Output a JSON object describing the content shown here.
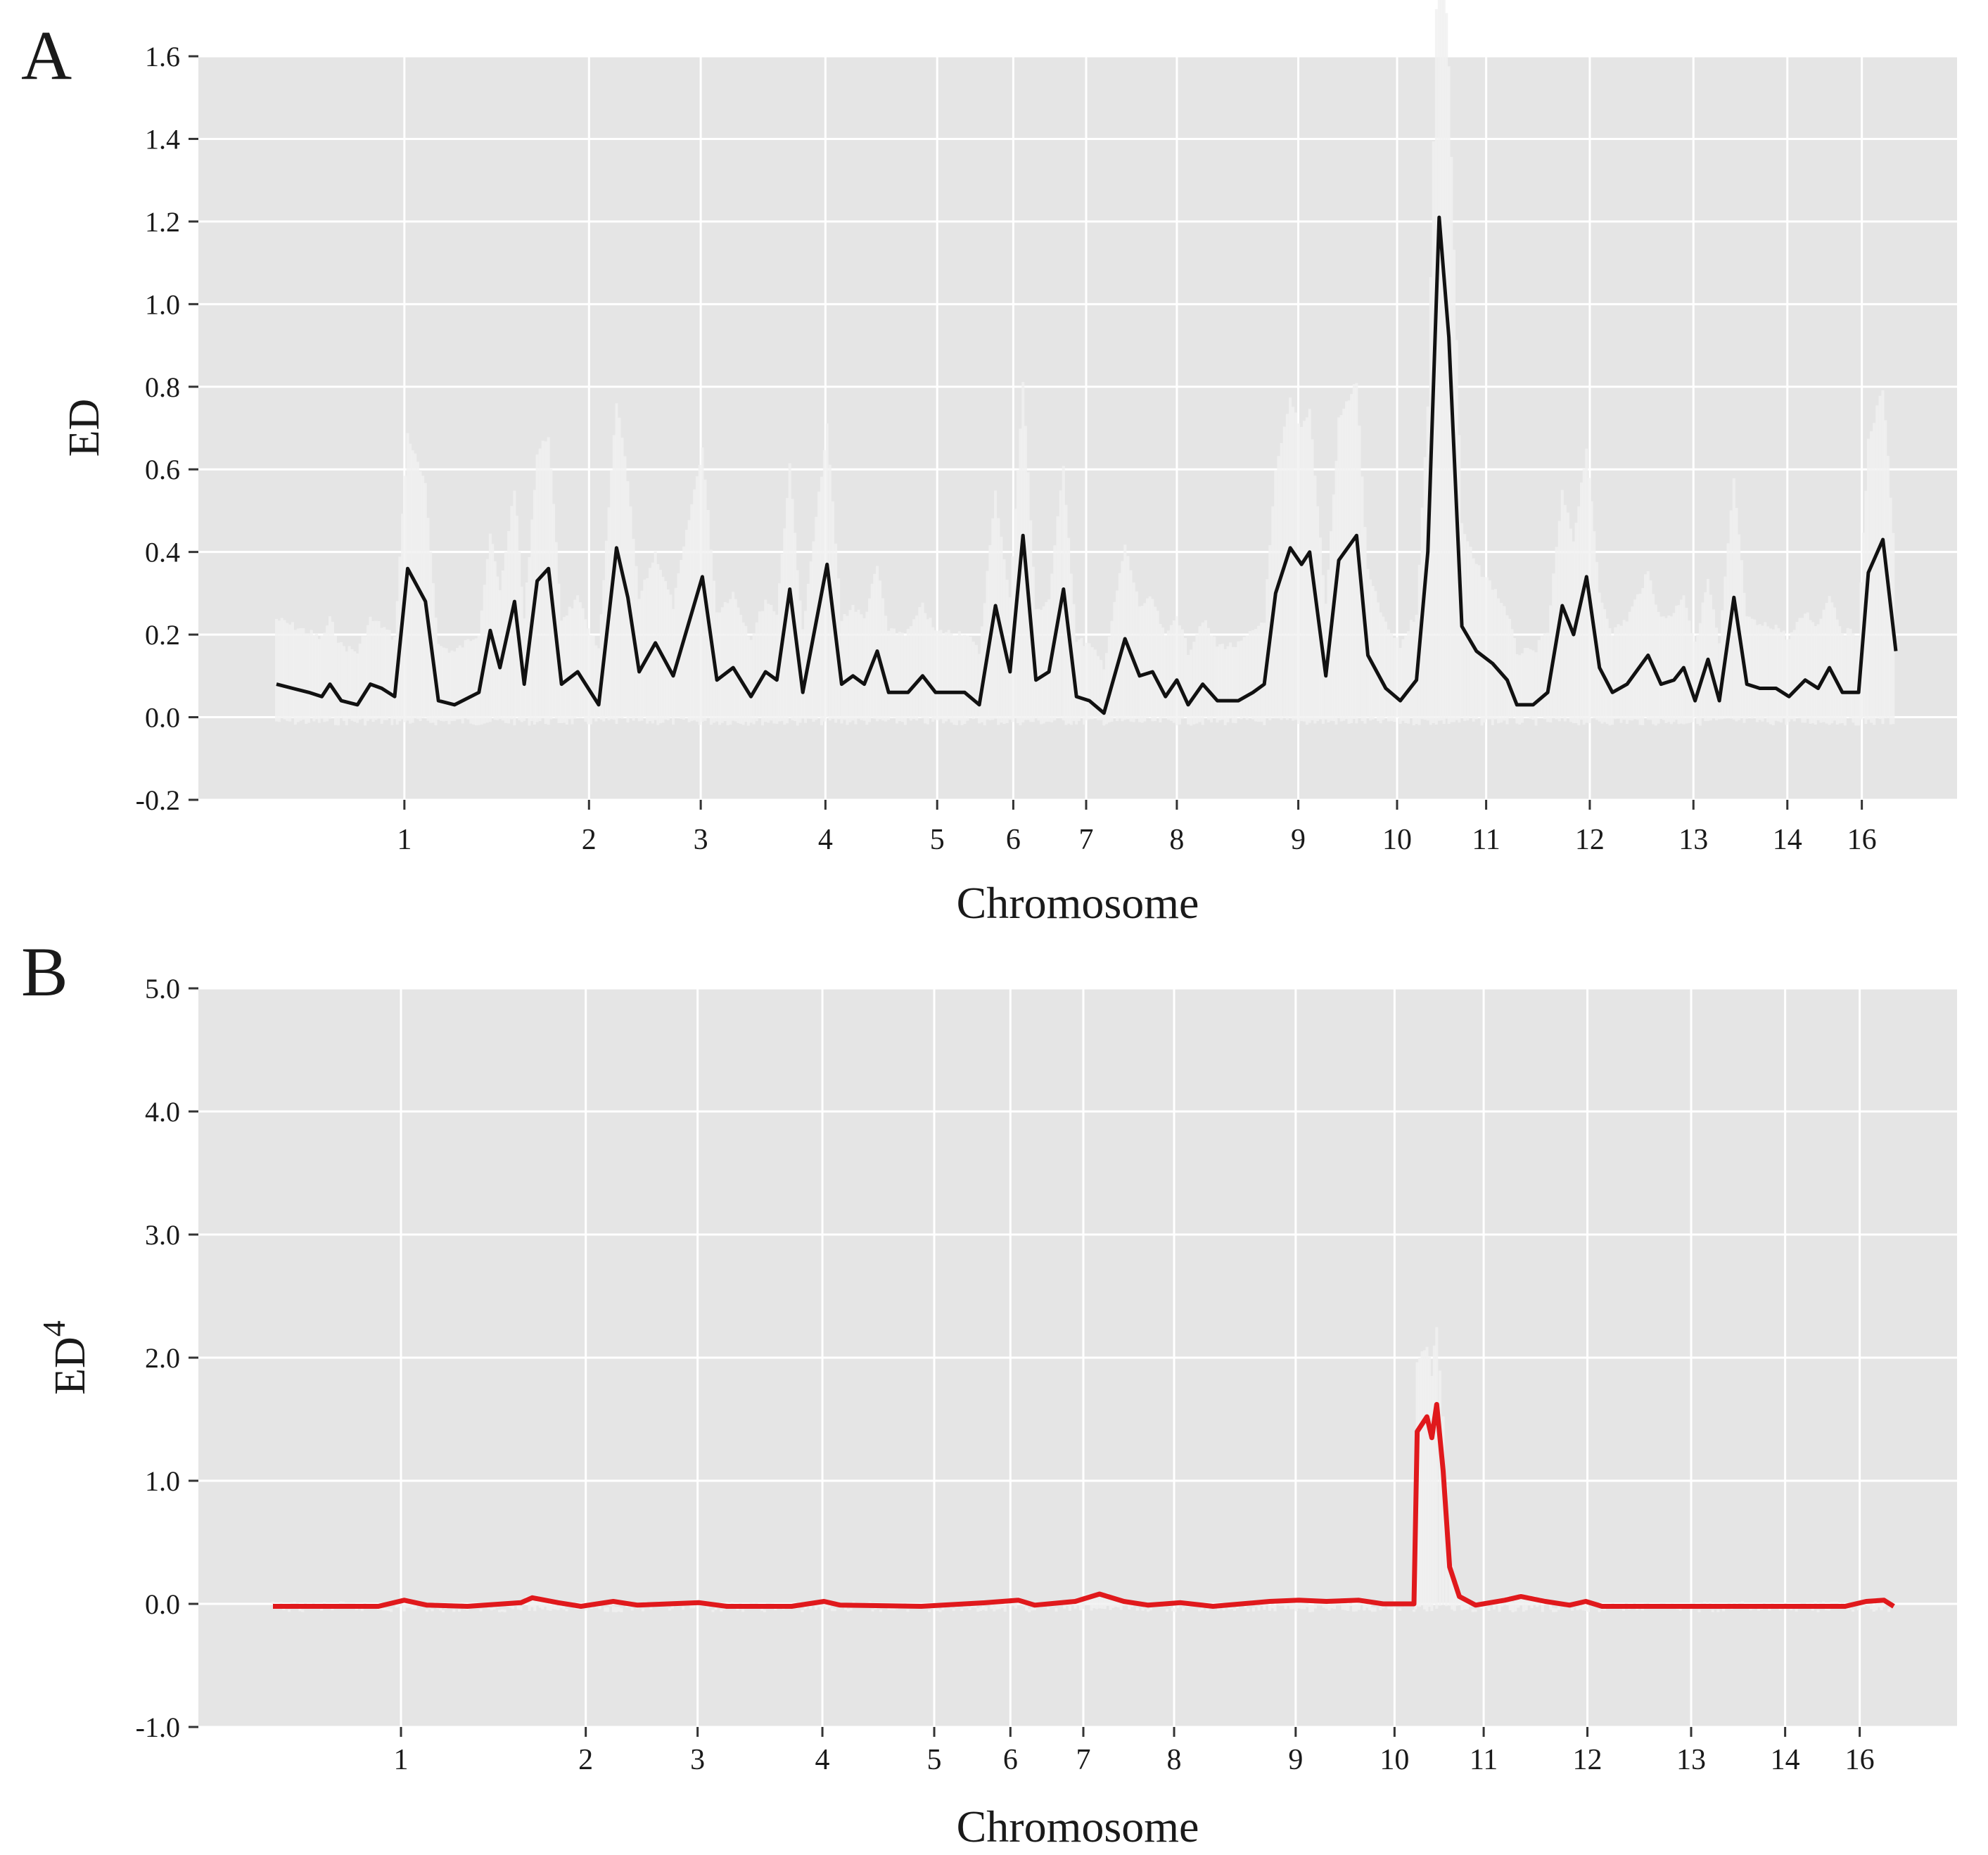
{
  "chart_data": [
    {
      "panel_label": "A",
      "type": "line",
      "xlabel": "Chromosome",
      "ylabel": "ED",
      "ylabel_sup": "",
      "ylim": [
        -0.2,
        1.6
      ],
      "yticks": [
        "-0.2",
        "0.0",
        "0.2",
        "0.4",
        "0.6",
        "0.8",
        "1.0",
        "1.2",
        "1.4",
        "1.6"
      ],
      "xlim": [
        0,
        100
      ],
      "chromosome_labels": [
        {
          "label": "1",
          "x": 7.9
        },
        {
          "label": "2",
          "x": 19.3
        },
        {
          "label": "3",
          "x": 26.2
        },
        {
          "label": "4",
          "x": 33.9
        },
        {
          "label": "5",
          "x": 40.8
        },
        {
          "label": "6",
          "x": 45.5
        },
        {
          "label": "7",
          "x": 50.0
        },
        {
          "label": "8",
          "x": 55.6
        },
        {
          "label": "9",
          "x": 63.1
        },
        {
          "label": "10",
          "x": 69.2
        },
        {
          "label": "11",
          "x": 74.7
        },
        {
          "label": "12",
          "x": 81.1
        },
        {
          "label": "13",
          "x": 87.5
        },
        {
          "label": "14",
          "x": 93.3
        },
        {
          "label": "16",
          "x": 97.9
        }
      ],
      "grid": true,
      "background": "#e5e5e5",
      "line_color": "#111111",
      "series": [
        {
          "points": [
            [
              0,
              0.08
            ],
            [
              1,
              0.07
            ],
            [
              2,
              0.06
            ],
            [
              2.8,
              0.05
            ],
            [
              3.3,
              0.08
            ],
            [
              4,
              0.04
            ],
            [
              5,
              0.03
            ],
            [
              5.8,
              0.08
            ],
            [
              6.5,
              0.07
            ],
            [
              7.3,
              0.05
            ],
            [
              8.1,
              0.36
            ],
            [
              9.2,
              0.28
            ],
            [
              10,
              0.04
            ],
            [
              11,
              0.03
            ],
            [
              12.5,
              0.06
            ],
            [
              13.2,
              0.21
            ],
            [
              13.8,
              0.12
            ],
            [
              14.7,
              0.28
            ],
            [
              15.3,
              0.08
            ],
            [
              16.1,
              0.33
            ],
            [
              16.8,
              0.36
            ],
            [
              17.6,
              0.08
            ],
            [
              18.6,
              0.11
            ],
            [
              19.9,
              0.03
            ],
            [
              21,
              0.41
            ],
            [
              21.7,
              0.29
            ],
            [
              22.4,
              0.11
            ],
            [
              23.4,
              0.18
            ],
            [
              24.5,
              0.1
            ],
            [
              26.3,
              0.34
            ],
            [
              27.2,
              0.09
            ],
            [
              28.2,
              0.12
            ],
            [
              29.3,
              0.05
            ],
            [
              30.2,
              0.11
            ],
            [
              30.9,
              0.09
            ],
            [
              31.7,
              0.31
            ],
            [
              32.5,
              0.06
            ],
            [
              34,
              0.37
            ],
            [
              34.9,
              0.08
            ],
            [
              35.6,
              0.1
            ],
            [
              36.3,
              0.08
            ],
            [
              37.1,
              0.16
            ],
            [
              37.8,
              0.06
            ],
            [
              39,
              0.06
            ],
            [
              39.9,
              0.1
            ],
            [
              40.7,
              0.06
            ],
            [
              42.5,
              0.06
            ],
            [
              43.4,
              0.03
            ],
            [
              44.4,
              0.27
            ],
            [
              45.3,
              0.11
            ],
            [
              46.1,
              0.44
            ],
            [
              46.9,
              0.09
            ],
            [
              47.7,
              0.11
            ],
            [
              48.6,
              0.31
            ],
            [
              49.4,
              0.05
            ],
            [
              50.2,
              0.04
            ],
            [
              51.1,
              0.01
            ],
            [
              52.4,
              0.19
            ],
            [
              53.3,
              0.1
            ],
            [
              54.1,
              0.11
            ],
            [
              54.9,
              0.05
            ],
            [
              55.6,
              0.09
            ],
            [
              56.3,
              0.03
            ],
            [
              57.2,
              0.08
            ],
            [
              58.1,
              0.04
            ],
            [
              59.4,
              0.04
            ],
            [
              60.3,
              0.06
            ],
            [
              61,
              0.08
            ],
            [
              61.7,
              0.3
            ],
            [
              62.6,
              0.41
            ],
            [
              63.3,
              0.37
            ],
            [
              63.8,
              0.4
            ],
            [
              64.8,
              0.1
            ],
            [
              65.6,
              0.38
            ],
            [
              66.7,
              0.44
            ],
            [
              67.4,
              0.15
            ],
            [
              68.5,
              0.07
            ],
            [
              69.4,
              0.04
            ],
            [
              70.4,
              0.09
            ],
            [
              71.1,
              0.4
            ],
            [
              71.8,
              1.21
            ],
            [
              72.4,
              0.92
            ],
            [
              73.2,
              0.22
            ],
            [
              74.1,
              0.16
            ],
            [
              75.1,
              0.13
            ],
            [
              76,
              0.09
            ],
            [
              76.6,
              0.03
            ],
            [
              77.6,
              0.03
            ],
            [
              78.5,
              0.06
            ],
            [
              79.4,
              0.27
            ],
            [
              80.1,
              0.2
            ],
            [
              80.9,
              0.34
            ],
            [
              81.7,
              0.12
            ],
            [
              82.5,
              0.06
            ],
            [
              83.4,
              0.08
            ],
            [
              84.7,
              0.15
            ],
            [
              85.5,
              0.08
            ],
            [
              86.3,
              0.09
            ],
            [
              86.9,
              0.12
            ],
            [
              87.6,
              0.04
            ],
            [
              88.4,
              0.14
            ],
            [
              89.1,
              0.04
            ],
            [
              90,
              0.29
            ],
            [
              90.8,
              0.08
            ],
            [
              91.6,
              0.07
            ],
            [
              92.6,
              0.07
            ],
            [
              93.4,
              0.05
            ],
            [
              94.4,
              0.09
            ],
            [
              95.2,
              0.07
            ],
            [
              95.9,
              0.12
            ],
            [
              96.7,
              0.06
            ],
            [
              97.7,
              0.06
            ],
            [
              98.3,
              0.35
            ],
            [
              99.2,
              0.43
            ],
            [
              100,
              0.16
            ]
          ]
        }
      ]
    },
    {
      "panel_label": "B",
      "type": "line",
      "xlabel": "Chromosome",
      "ylabel": "ED",
      "ylabel_sup": "4",
      "ylim": [
        -1.0,
        5.0
      ],
      "yticks": [
        "-1.0",
        "0.0",
        "1.0",
        "2.0",
        "3.0",
        "4.0",
        "5.0"
      ],
      "xlim": [
        0,
        100
      ],
      "chromosome_labels": [
        {
          "label": "1",
          "x": 7.9
        },
        {
          "label": "2",
          "x": 19.3
        },
        {
          "label": "3",
          "x": 26.2
        },
        {
          "label": "4",
          "x": 33.9
        },
        {
          "label": "5",
          "x": 40.8
        },
        {
          "label": "6",
          "x": 45.5
        },
        {
          "label": "7",
          "x": 50.0
        },
        {
          "label": "8",
          "x": 55.6
        },
        {
          "label": "9",
          "x": 63.1
        },
        {
          "label": "10",
          "x": 69.2
        },
        {
          "label": "11",
          "x": 74.7
        },
        {
          "label": "12",
          "x": 81.1
        },
        {
          "label": "13",
          "x": 87.5
        },
        {
          "label": "14",
          "x": 93.3
        },
        {
          "label": "16",
          "x": 97.9
        }
      ],
      "grid": true,
      "background": "#e5e5e5",
      "line_color": "#e0191c",
      "series": [
        {
          "points": [
            [
              0,
              -0.02
            ],
            [
              6.5,
              -0.02
            ],
            [
              8.1,
              0.03
            ],
            [
              9.5,
              -0.01
            ],
            [
              12,
              -0.02
            ],
            [
              15.3,
              0.01
            ],
            [
              16,
              0.05
            ],
            [
              16.8,
              0.03
            ],
            [
              17.6,
              0.01
            ],
            [
              19,
              -0.02
            ],
            [
              21,
              0.02
            ],
            [
              22.5,
              -0.01
            ],
            [
              26.3,
              0.01
            ],
            [
              28,
              -0.02
            ],
            [
              32,
              -0.02
            ],
            [
              34,
              0.02
            ],
            [
              35,
              -0.01
            ],
            [
              40,
              -0.02
            ],
            [
              44,
              0.01
            ],
            [
              46,
              0.03
            ],
            [
              47,
              -0.01
            ],
            [
              49.5,
              0.02
            ],
            [
              51,
              0.08
            ],
            [
              52.5,
              0.02
            ],
            [
              54,
              -0.01
            ],
            [
              56,
              0.01
            ],
            [
              58,
              -0.02
            ],
            [
              61.5,
              0.02
            ],
            [
              63.3,
              0.03
            ],
            [
              65,
              0.02
            ],
            [
              67,
              0.03
            ],
            [
              68.5,
              0.0
            ],
            [
              70.4,
              0.0
            ],
            [
              70.6,
              1.4
            ],
            [
              71.2,
              1.52
            ],
            [
              71.5,
              1.35
            ],
            [
              71.8,
              1.62
            ],
            [
              72.2,
              1.08
            ],
            [
              72.6,
              0.3
            ],
            [
              73.2,
              0.06
            ],
            [
              74.2,
              -0.01
            ],
            [
              76,
              0.03
            ],
            [
              77,
              0.06
            ],
            [
              78.5,
              0.02
            ],
            [
              80,
              -0.01
            ],
            [
              81,
              0.02
            ],
            [
              82,
              -0.02
            ],
            [
              90,
              -0.02
            ],
            [
              97,
              -0.02
            ],
            [
              98.3,
              0.02
            ],
            [
              99.4,
              0.03
            ],
            [
              100,
              -0.02
            ]
          ]
        }
      ]
    }
  ]
}
